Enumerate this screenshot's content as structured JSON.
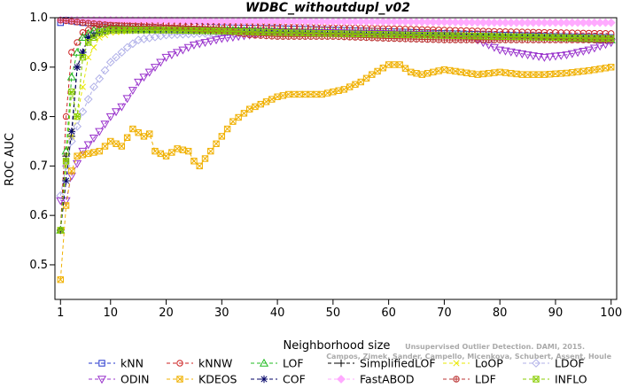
{
  "chart_data": {
    "type": "line",
    "title": "WDBC_withoutdupl_v02",
    "xlabel": "Neighborhood size",
    "ylabel": "ROC AUC",
    "xlim": [
      0,
      101
    ],
    "ylim": [
      0.43,
      1.0
    ],
    "xticks": [
      1,
      10,
      20,
      30,
      40,
      50,
      60,
      70,
      80,
      90,
      100
    ],
    "yticks": [
      0.5,
      0.6,
      0.7,
      0.8,
      0.9,
      1.0
    ],
    "ytick_labels": [
      "0.5",
      "0.6",
      "0.7",
      "0.8",
      "0.9",
      "1.0"
    ],
    "grid": false,
    "legend_position": "bottom",
    "watermark": "Unsupervised Outlier Detection. DAMI, 2015. Campos, Zimek, Sander, Campello, Micenkova, Schubert, Assent, Houle",
    "series": [
      {
        "name": "kNN",
        "color": "#2233cc",
        "marker": "square",
        "points": [
          [
            1,
            0.99
          ],
          [
            2,
            0.995
          ],
          [
            5,
            0.99
          ],
          [
            10,
            0.988
          ],
          [
            20,
            0.985
          ],
          [
            30,
            0.98
          ],
          [
            40,
            0.978
          ],
          [
            50,
            0.975
          ],
          [
            60,
            0.972
          ],
          [
            70,
            0.968
          ],
          [
            80,
            0.965
          ],
          [
            90,
            0.962
          ],
          [
            100,
            0.96
          ]
        ]
      },
      {
        "name": "kNNW",
        "color": "#cc2222",
        "marker": "circle",
        "points": [
          [
            1,
            0.57
          ],
          [
            2,
            0.8
          ],
          [
            3,
            0.93
          ],
          [
            5,
            0.97
          ],
          [
            8,
            0.985
          ],
          [
            10,
            0.988
          ],
          [
            20,
            0.988
          ],
          [
            30,
            0.985
          ],
          [
            40,
            0.983
          ],
          [
            50,
            0.98
          ],
          [
            60,
            0.978
          ],
          [
            70,
            0.975
          ],
          [
            80,
            0.972
          ],
          [
            90,
            0.97
          ],
          [
            100,
            0.968
          ]
        ]
      },
      {
        "name": "LOF",
        "color": "#22bb22",
        "marker": "triangle-up",
        "points": [
          [
            1,
            0.57
          ],
          [
            2,
            0.73
          ],
          [
            3,
            0.88
          ],
          [
            4,
            0.93
          ],
          [
            5,
            0.96
          ],
          [
            7,
            0.975
          ],
          [
            10,
            0.98
          ],
          [
            20,
            0.975
          ],
          [
            30,
            0.975
          ],
          [
            40,
            0.972
          ],
          [
            50,
            0.97
          ],
          [
            60,
            0.968
          ],
          [
            70,
            0.965
          ],
          [
            80,
            0.962
          ],
          [
            90,
            0.96
          ],
          [
            100,
            0.955
          ]
        ]
      },
      {
        "name": "SimplifiedLOF",
        "color": "#000000",
        "marker": "plus",
        "points": [
          [
            1,
            0.57
          ],
          [
            2,
            0.72
          ],
          [
            3,
            0.76
          ],
          [
            4,
            0.9
          ],
          [
            5,
            0.93
          ],
          [
            6,
            0.96
          ],
          [
            8,
            0.97
          ],
          [
            10,
            0.975
          ],
          [
            20,
            0.975
          ],
          [
            30,
            0.972
          ],
          [
            40,
            0.97
          ],
          [
            50,
            0.968
          ],
          [
            60,
            0.965
          ],
          [
            70,
            0.962
          ],
          [
            80,
            0.96
          ],
          [
            90,
            0.958
          ],
          [
            100,
            0.955
          ]
        ]
      },
      {
        "name": "LoOP",
        "color": "#e8e800",
        "marker": "x",
        "points": [
          [
            1,
            0.57
          ],
          [
            2,
            0.7
          ],
          [
            3,
            0.76
          ],
          [
            4,
            0.8
          ],
          [
            5,
            0.86
          ],
          [
            6,
            0.92
          ],
          [
            8,
            0.96
          ],
          [
            10,
            0.97
          ],
          [
            15,
            0.975
          ],
          [
            20,
            0.975
          ],
          [
            30,
            0.972
          ],
          [
            40,
            0.97
          ],
          [
            50,
            0.968
          ],
          [
            60,
            0.966
          ],
          [
            70,
            0.964
          ],
          [
            80,
            0.962
          ],
          [
            90,
            0.96
          ],
          [
            100,
            0.958
          ]
        ]
      },
      {
        "name": "LDOF",
        "color": "#b0b0e8",
        "marker": "diamond",
        "points": [
          [
            1,
            0.64
          ],
          [
            2,
            0.7
          ],
          [
            3,
            0.75
          ],
          [
            5,
            0.81
          ],
          [
            7,
            0.86
          ],
          [
            10,
            0.91
          ],
          [
            13,
            0.94
          ],
          [
            15,
            0.955
          ],
          [
            20,
            0.965
          ],
          [
            30,
            0.97
          ],
          [
            40,
            0.97
          ],
          [
            50,
            0.968
          ],
          [
            60,
            0.966
          ],
          [
            70,
            0.964
          ],
          [
            80,
            0.962
          ],
          [
            90,
            0.96
          ],
          [
            100,
            0.958
          ]
        ]
      },
      {
        "name": "ODIN",
        "color": "#9933cc",
        "marker": "triangle-down",
        "points": [
          [
            1,
            0.63
          ],
          [
            2,
            0.63
          ],
          [
            3,
            0.68
          ],
          [
            5,
            0.73
          ],
          [
            8,
            0.77
          ],
          [
            10,
            0.8
          ],
          [
            12,
            0.82
          ],
          [
            15,
            0.87
          ],
          [
            20,
            0.92
          ],
          [
            25,
            0.945
          ],
          [
            30,
            0.958
          ],
          [
            35,
            0.965
          ],
          [
            40,
            0.97
          ],
          [
            50,
            0.97
          ],
          [
            60,
            0.968
          ],
          [
            70,
            0.965
          ],
          [
            75,
            0.96
          ],
          [
            78,
            0.945
          ],
          [
            80,
            0.935
          ],
          [
            85,
            0.925
          ],
          [
            88,
            0.92
          ],
          [
            92,
            0.925
          ],
          [
            96,
            0.935
          ],
          [
            100,
            0.95
          ]
        ]
      },
      {
        "name": "KDEOS",
        "color": "#f0b000",
        "marker": "square-x",
        "points": [
          [
            1,
            0.47
          ],
          [
            2,
            0.62
          ],
          [
            3,
            0.69
          ],
          [
            4,
            0.72
          ],
          [
            6,
            0.725
          ],
          [
            8,
            0.73
          ],
          [
            10,
            0.75
          ],
          [
            12,
            0.74
          ],
          [
            14,
            0.775
          ],
          [
            16,
            0.76
          ],
          [
            17,
            0.765
          ],
          [
            18,
            0.73
          ],
          [
            20,
            0.72
          ],
          [
            22,
            0.735
          ],
          [
            24,
            0.73
          ],
          [
            25,
            0.71
          ],
          [
            26,
            0.7
          ],
          [
            28,
            0.73
          ],
          [
            30,
            0.76
          ],
          [
            32,
            0.79
          ],
          [
            35,
            0.815
          ],
          [
            38,
            0.83
          ],
          [
            40,
            0.84
          ],
          [
            42,
            0.845
          ],
          [
            45,
            0.845
          ],
          [
            48,
            0.845
          ],
          [
            50,
            0.85
          ],
          [
            52,
            0.855
          ],
          [
            55,
            0.87
          ],
          [
            57,
            0.885
          ],
          [
            60,
            0.905
          ],
          [
            62,
            0.905
          ],
          [
            64,
            0.89
          ],
          [
            66,
            0.885
          ],
          [
            70,
            0.895
          ],
          [
            73,
            0.89
          ],
          [
            76,
            0.885
          ],
          [
            80,
            0.89
          ],
          [
            84,
            0.885
          ],
          [
            88,
            0.885
          ],
          [
            92,
            0.888
          ],
          [
            96,
            0.893
          ],
          [
            100,
            0.9
          ]
        ]
      },
      {
        "name": "COF",
        "color": "#000066",
        "marker": "asterisk",
        "points": [
          [
            1,
            0.57
          ],
          [
            2,
            0.67
          ],
          [
            3,
            0.77
          ],
          [
            4,
            0.9
          ],
          [
            5,
            0.93
          ],
          [
            6,
            0.96
          ],
          [
            8,
            0.97
          ],
          [
            10,
            0.975
          ],
          [
            20,
            0.975
          ],
          [
            30,
            0.973
          ],
          [
            40,
            0.97
          ],
          [
            50,
            0.968
          ],
          [
            60,
            0.966
          ],
          [
            70,
            0.964
          ],
          [
            80,
            0.962
          ],
          [
            90,
            0.96
          ],
          [
            100,
            0.958
          ]
        ]
      },
      {
        "name": "FastABOD",
        "color": "#ffaaff",
        "marker": "diamond-filled",
        "points": [
          [
            1,
            0.995
          ],
          [
            5,
            0.995
          ],
          [
            10,
            0.995
          ],
          [
            20,
            0.994
          ],
          [
            30,
            0.993
          ],
          [
            40,
            0.993
          ],
          [
            50,
            0.992
          ],
          [
            60,
            0.992
          ],
          [
            70,
            0.991
          ],
          [
            80,
            0.99
          ],
          [
            90,
            0.99
          ],
          [
            100,
            0.99
          ]
        ]
      },
      {
        "name": "LDF",
        "color": "#bb3333",
        "marker": "circle-plus",
        "points": [
          [
            1,
            0.995
          ],
          [
            5,
            0.99
          ],
          [
            10,
            0.985
          ],
          [
            20,
            0.98
          ],
          [
            30,
            0.975
          ],
          [
            35,
            0.965
          ],
          [
            40,
            0.962
          ],
          [
            50,
            0.962
          ],
          [
            60,
            0.958
          ],
          [
            70,
            0.955
          ],
          [
            80,
            0.955
          ],
          [
            90,
            0.955
          ],
          [
            100,
            0.955
          ]
        ]
      },
      {
        "name": "INFLO",
        "color": "#88cc00",
        "marker": "square-star",
        "points": [
          [
            1,
            0.57
          ],
          [
            2,
            0.71
          ],
          [
            3,
            0.85
          ],
          [
            4,
            0.8
          ],
          [
            5,
            0.92
          ],
          [
            6,
            0.95
          ],
          [
            8,
            0.97
          ],
          [
            10,
            0.975
          ],
          [
            20,
            0.975
          ],
          [
            30,
            0.973
          ],
          [
            40,
            0.97
          ],
          [
            50,
            0.968
          ],
          [
            60,
            0.966
          ],
          [
            70,
            0.964
          ],
          [
            80,
            0.962
          ],
          [
            90,
            0.96
          ],
          [
            100,
            0.958
          ]
        ]
      }
    ]
  }
}
